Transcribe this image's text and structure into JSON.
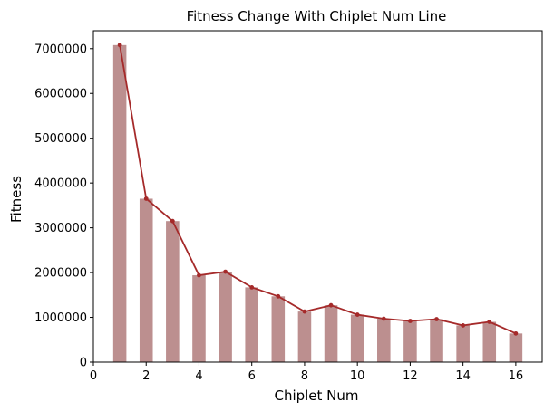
{
  "chart_data": {
    "type": "bar",
    "title": "Fitness Change With Chiplet Num Line",
    "xlabel": "Chiplet Num",
    "ylabel": "Fitness",
    "xlim": [
      0,
      17
    ],
    "ylim": [
      0,
      7400000
    ],
    "x_ticks": [
      0,
      2,
      4,
      6,
      8,
      10,
      12,
      14,
      16
    ],
    "x_tick_labels": [
      "0",
      "2",
      "4",
      "6",
      "8",
      "10",
      "12",
      "14",
      "16"
    ],
    "y_ticks": [
      0,
      1000000,
      2000000,
      3000000,
      4000000,
      5000000,
      6000000,
      7000000
    ],
    "y_tick_labels": [
      "0",
      "1000000",
      "2000000",
      "3000000",
      "4000000",
      "5000000",
      "6000000",
      "7000000"
    ],
    "grid": false,
    "x": [
      1,
      2,
      3,
      4,
      5,
      6,
      7,
      8,
      9,
      10,
      11,
      12,
      13,
      14,
      15,
      16
    ],
    "series": [
      {
        "type": "bar",
        "color": "#bc8f8f",
        "values": [
          7080000,
          3650000,
          3150000,
          1940000,
          2020000,
          1670000,
          1470000,
          1130000,
          1270000,
          1060000,
          970000,
          920000,
          960000,
          820000,
          900000,
          640000
        ]
      },
      {
        "type": "line",
        "color": "#a52a2a",
        "marker": "dot",
        "values": [
          7080000,
          3650000,
          3150000,
          1940000,
          2020000,
          1670000,
          1470000,
          1130000,
          1270000,
          1060000,
          970000,
          920000,
          960000,
          820000,
          900000,
          640000
        ]
      }
    ]
  }
}
